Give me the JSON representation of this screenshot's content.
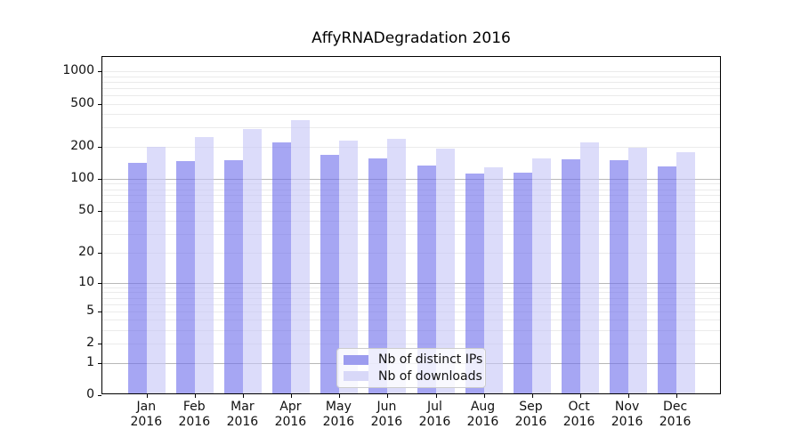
{
  "figure": {
    "title": "AffyRNADegradation 2016"
  },
  "chart_data": {
    "type": "bar",
    "title": "AffyRNADegradation 2016",
    "categories": [
      "Jan",
      "Feb",
      "Mar",
      "Apr",
      "May",
      "Jun",
      "Jul",
      "Aug",
      "Sep",
      "Oct",
      "Nov",
      "Dec"
    ],
    "x_year": "2016",
    "series": [
      {
        "name": "Nb of distinct IPs",
        "color": "rgba(112,112,235,0.62)",
        "legend_color": "#9c9cef",
        "values": [
          136,
          140,
          143,
          211,
          160,
          149,
          129,
          108,
          110,
          146,
          144,
          125
        ]
      },
      {
        "name": "Nb of downloads",
        "color": "rgba(198,198,247,0.62)",
        "legend_color": "#d8d8f8",
        "values": [
          190,
          236,
          281,
          340,
          219,
          226,
          183,
          123,
          150,
          211,
          188,
          171
        ]
      }
    ],
    "y_ticks": [
      0,
      1,
      2,
      5,
      10,
      20,
      50,
      100,
      200,
      500,
      1000
    ],
    "y_scale": "log1p",
    "ylim": [
      0,
      1360
    ],
    "grid": true,
    "legend_position": "lower center",
    "gridline_minor_color": "#ebebeb",
    "gridline_major_color": "#b8b8b8"
  }
}
